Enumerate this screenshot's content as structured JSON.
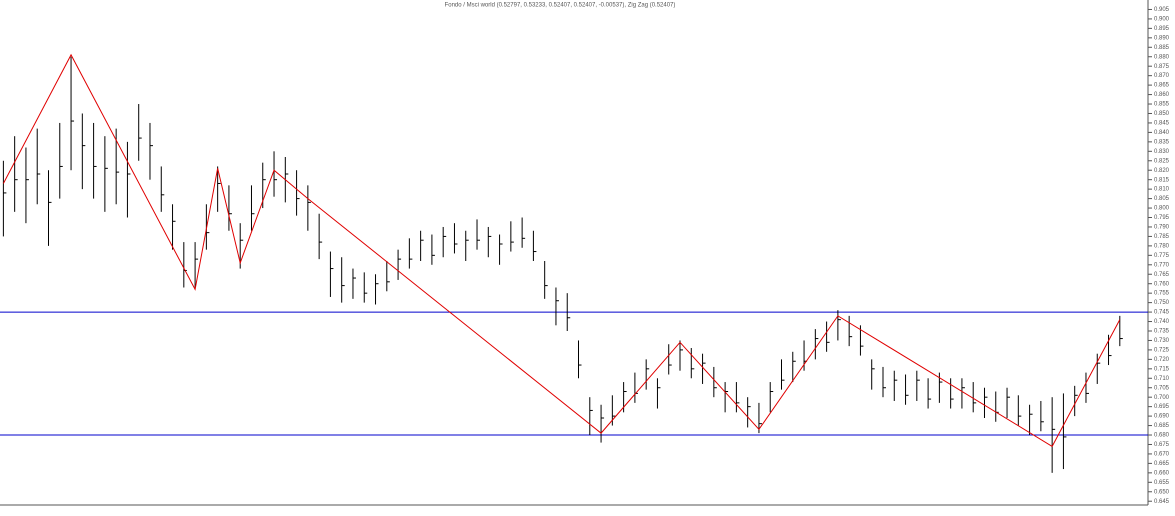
{
  "chart_data": {
    "type": "ohlc",
    "title": "Fondo / Msci world (0.52797, 0.53233, 0.52407, 0.52407, -0.00537), Zig Zag (0.52407)",
    "bar_color": "#000000",
    "high": [
      0.825,
      0.838,
      0.832,
      0.842,
      0.82,
      0.845,
      0.88,
      0.85,
      0.845,
      0.838,
      0.842,
      0.835,
      0.855,
      0.845,
      0.822,
      0.802,
      0.782,
      0.782,
      0.802,
      0.822,
      0.812,
      0.792,
      0.812,
      0.824,
      0.83,
      0.827,
      0.82,
      0.812,
      0.797,
      0.777,
      0.774,
      0.768,
      0.766,
      0.765,
      0.772,
      0.778,
      0.784,
      0.788,
      0.786,
      0.79,
      0.792,
      0.788,
      0.794,
      0.79,
      0.786,
      0.793,
      0.795,
      0.788,
      0.772,
      0.758,
      0.755,
      0.73,
      0.7,
      0.696,
      0.701,
      0.708,
      0.713,
      0.72,
      0.71,
      0.728,
      0.73,
      0.726,
      0.723,
      0.716,
      0.708,
      0.708,
      0.7,
      0.697,
      0.708,
      0.72,
      0.724,
      0.73,
      0.736,
      0.74,
      0.746,
      0.743,
      0.738,
      0.72,
      0.716,
      0.714,
      0.712,
      0.714,
      0.71,
      0.713,
      0.71,
      0.71,
      0.708,
      0.705,
      0.703,
      0.705,
      0.701,
      0.696,
      0.698,
      0.7,
      0.702,
      0.706,
      0.713,
      0.723,
      0.733,
      0.743
    ],
    "low": [
      0.785,
      0.798,
      0.792,
      0.802,
      0.78,
      0.805,
      0.82,
      0.81,
      0.805,
      0.798,
      0.802,
      0.795,
      0.825,
      0.815,
      0.798,
      0.778,
      0.758,
      0.758,
      0.778,
      0.798,
      0.788,
      0.768,
      0.788,
      0.8,
      0.806,
      0.803,
      0.796,
      0.788,
      0.773,
      0.753,
      0.75,
      0.752,
      0.75,
      0.749,
      0.756,
      0.762,
      0.768,
      0.772,
      0.77,
      0.774,
      0.776,
      0.772,
      0.778,
      0.774,
      0.77,
      0.777,
      0.779,
      0.772,
      0.752,
      0.738,
      0.735,
      0.71,
      0.68,
      0.676,
      0.685,
      0.692,
      0.697,
      0.704,
      0.694,
      0.712,
      0.714,
      0.71,
      0.707,
      0.7,
      0.692,
      0.692,
      0.684,
      0.681,
      0.692,
      0.704,
      0.708,
      0.714,
      0.72,
      0.724,
      0.73,
      0.727,
      0.722,
      0.704,
      0.7,
      0.698,
      0.696,
      0.698,
      0.694,
      0.697,
      0.694,
      0.694,
      0.692,
      0.689,
      0.687,
      0.689,
      0.685,
      0.68,
      0.682,
      0.66,
      0.662,
      0.69,
      0.697,
      0.707,
      0.717,
      0.727
    ],
    "close": [
      0.808,
      0.815,
      0.815,
      0.818,
      0.803,
      0.822,
      0.846,
      0.833,
      0.822,
      0.821,
      0.819,
      0.818,
      0.837,
      0.833,
      0.807,
      0.793,
      0.767,
      0.773,
      0.787,
      0.813,
      0.797,
      0.783,
      0.797,
      0.815,
      0.815,
      0.818,
      0.805,
      0.803,
      0.782,
      0.768,
      0.759,
      0.763,
      0.755,
      0.76,
      0.761,
      0.773,
      0.773,
      0.783,
      0.775,
      0.785,
      0.781,
      0.783,
      0.783,
      0.785,
      0.781,
      0.782,
      0.784,
      0.777,
      0.759,
      0.751,
      0.742,
      0.717,
      0.693,
      0.689,
      0.69,
      0.703,
      0.702,
      0.715,
      0.705,
      0.717,
      0.725,
      0.715,
      0.718,
      0.705,
      0.703,
      0.697,
      0.695,
      0.686,
      0.703,
      0.709,
      0.719,
      0.719,
      0.731,
      0.729,
      0.741,
      0.732,
      0.727,
      0.715,
      0.705,
      0.709,
      0.701,
      0.709,
      0.699,
      0.708,
      0.699,
      0.705,
      0.697,
      0.7,
      0.692,
      0.7,
      0.69,
      0.691,
      0.687,
      0.683,
      0.679,
      0.701,
      0.702,
      0.718,
      0.722,
      0.731
    ],
    "zigzag": {
      "color": "#e00000",
      "x": [
        0,
        6,
        17,
        19,
        21,
        24,
        27,
        53,
        60,
        67,
        74,
        93,
        99
      ],
      "values": [
        0.813,
        0.881,
        0.757,
        0.821,
        0.771,
        0.82,
        0.805,
        0.681,
        0.729,
        0.683,
        0.743,
        0.674,
        0.741
      ]
    },
    "hlines": {
      "color": "#0000cc",
      "values": [
        0.745,
        0.68
      ]
    },
    "xlim": [
      -0.3,
      101.5
    ],
    "ylim": [
      0.643,
      0.91
    ],
    "yticks": [
      0.905,
      {
        "value": 0.9,
        "label": "0.900"
      },
      0.895,
      {
        "value": 0.89,
        "label": "0.890"
      },
      0.885,
      {
        "value": 0.88,
        "label": "0.880"
      },
      0.875,
      {
        "value": 0.87,
        "label": "0.870"
      },
      0.865,
      {
        "value": 0.86,
        "label": "0.860"
      },
      0.855,
      {
        "value": 0.85,
        "label": "0.850"
      },
      0.845,
      {
        "value": 0.84,
        "label": "0.840"
      },
      0.835,
      {
        "value": 0.83,
        "label": "0.830"
      },
      0.825,
      {
        "value": 0.82,
        "label": "0.820"
      },
      0.815,
      {
        "value": 0.81,
        "label": "0.810"
      },
      0.805,
      {
        "value": 0.8,
        "label": "0.800"
      },
      0.795,
      {
        "value": 0.79,
        "label": "0.790"
      },
      0.785,
      {
        "value": 0.78,
        "label": "0.780"
      },
      0.775,
      {
        "value": 0.77,
        "label": "0.770"
      },
      0.765,
      {
        "value": 0.76,
        "label": "0.760"
      },
      0.755,
      {
        "value": 0.75,
        "label": "0.750"
      },
      0.745,
      {
        "value": 0.74,
        "label": "0.740"
      },
      0.735,
      {
        "value": 0.73,
        "label": "0.730"
      },
      0.725,
      {
        "value": 0.72,
        "label": "0.720"
      },
      0.715,
      {
        "value": 0.71,
        "label": "0.710"
      },
      0.705,
      {
        "value": 0.7,
        "label": "0.700"
      },
      0.695,
      {
        "value": 0.69,
        "label": "0.690"
      },
      0.685,
      {
        "value": 0.68,
        "label": "0.680"
      },
      0.675,
      {
        "value": 0.67,
        "label": "0.670"
      },
      0.665,
      {
        "value": 0.66,
        "label": "0.660"
      },
      0.655,
      {
        "value": 0.65,
        "label": "0.650"
      },
      0.645
    ]
  }
}
